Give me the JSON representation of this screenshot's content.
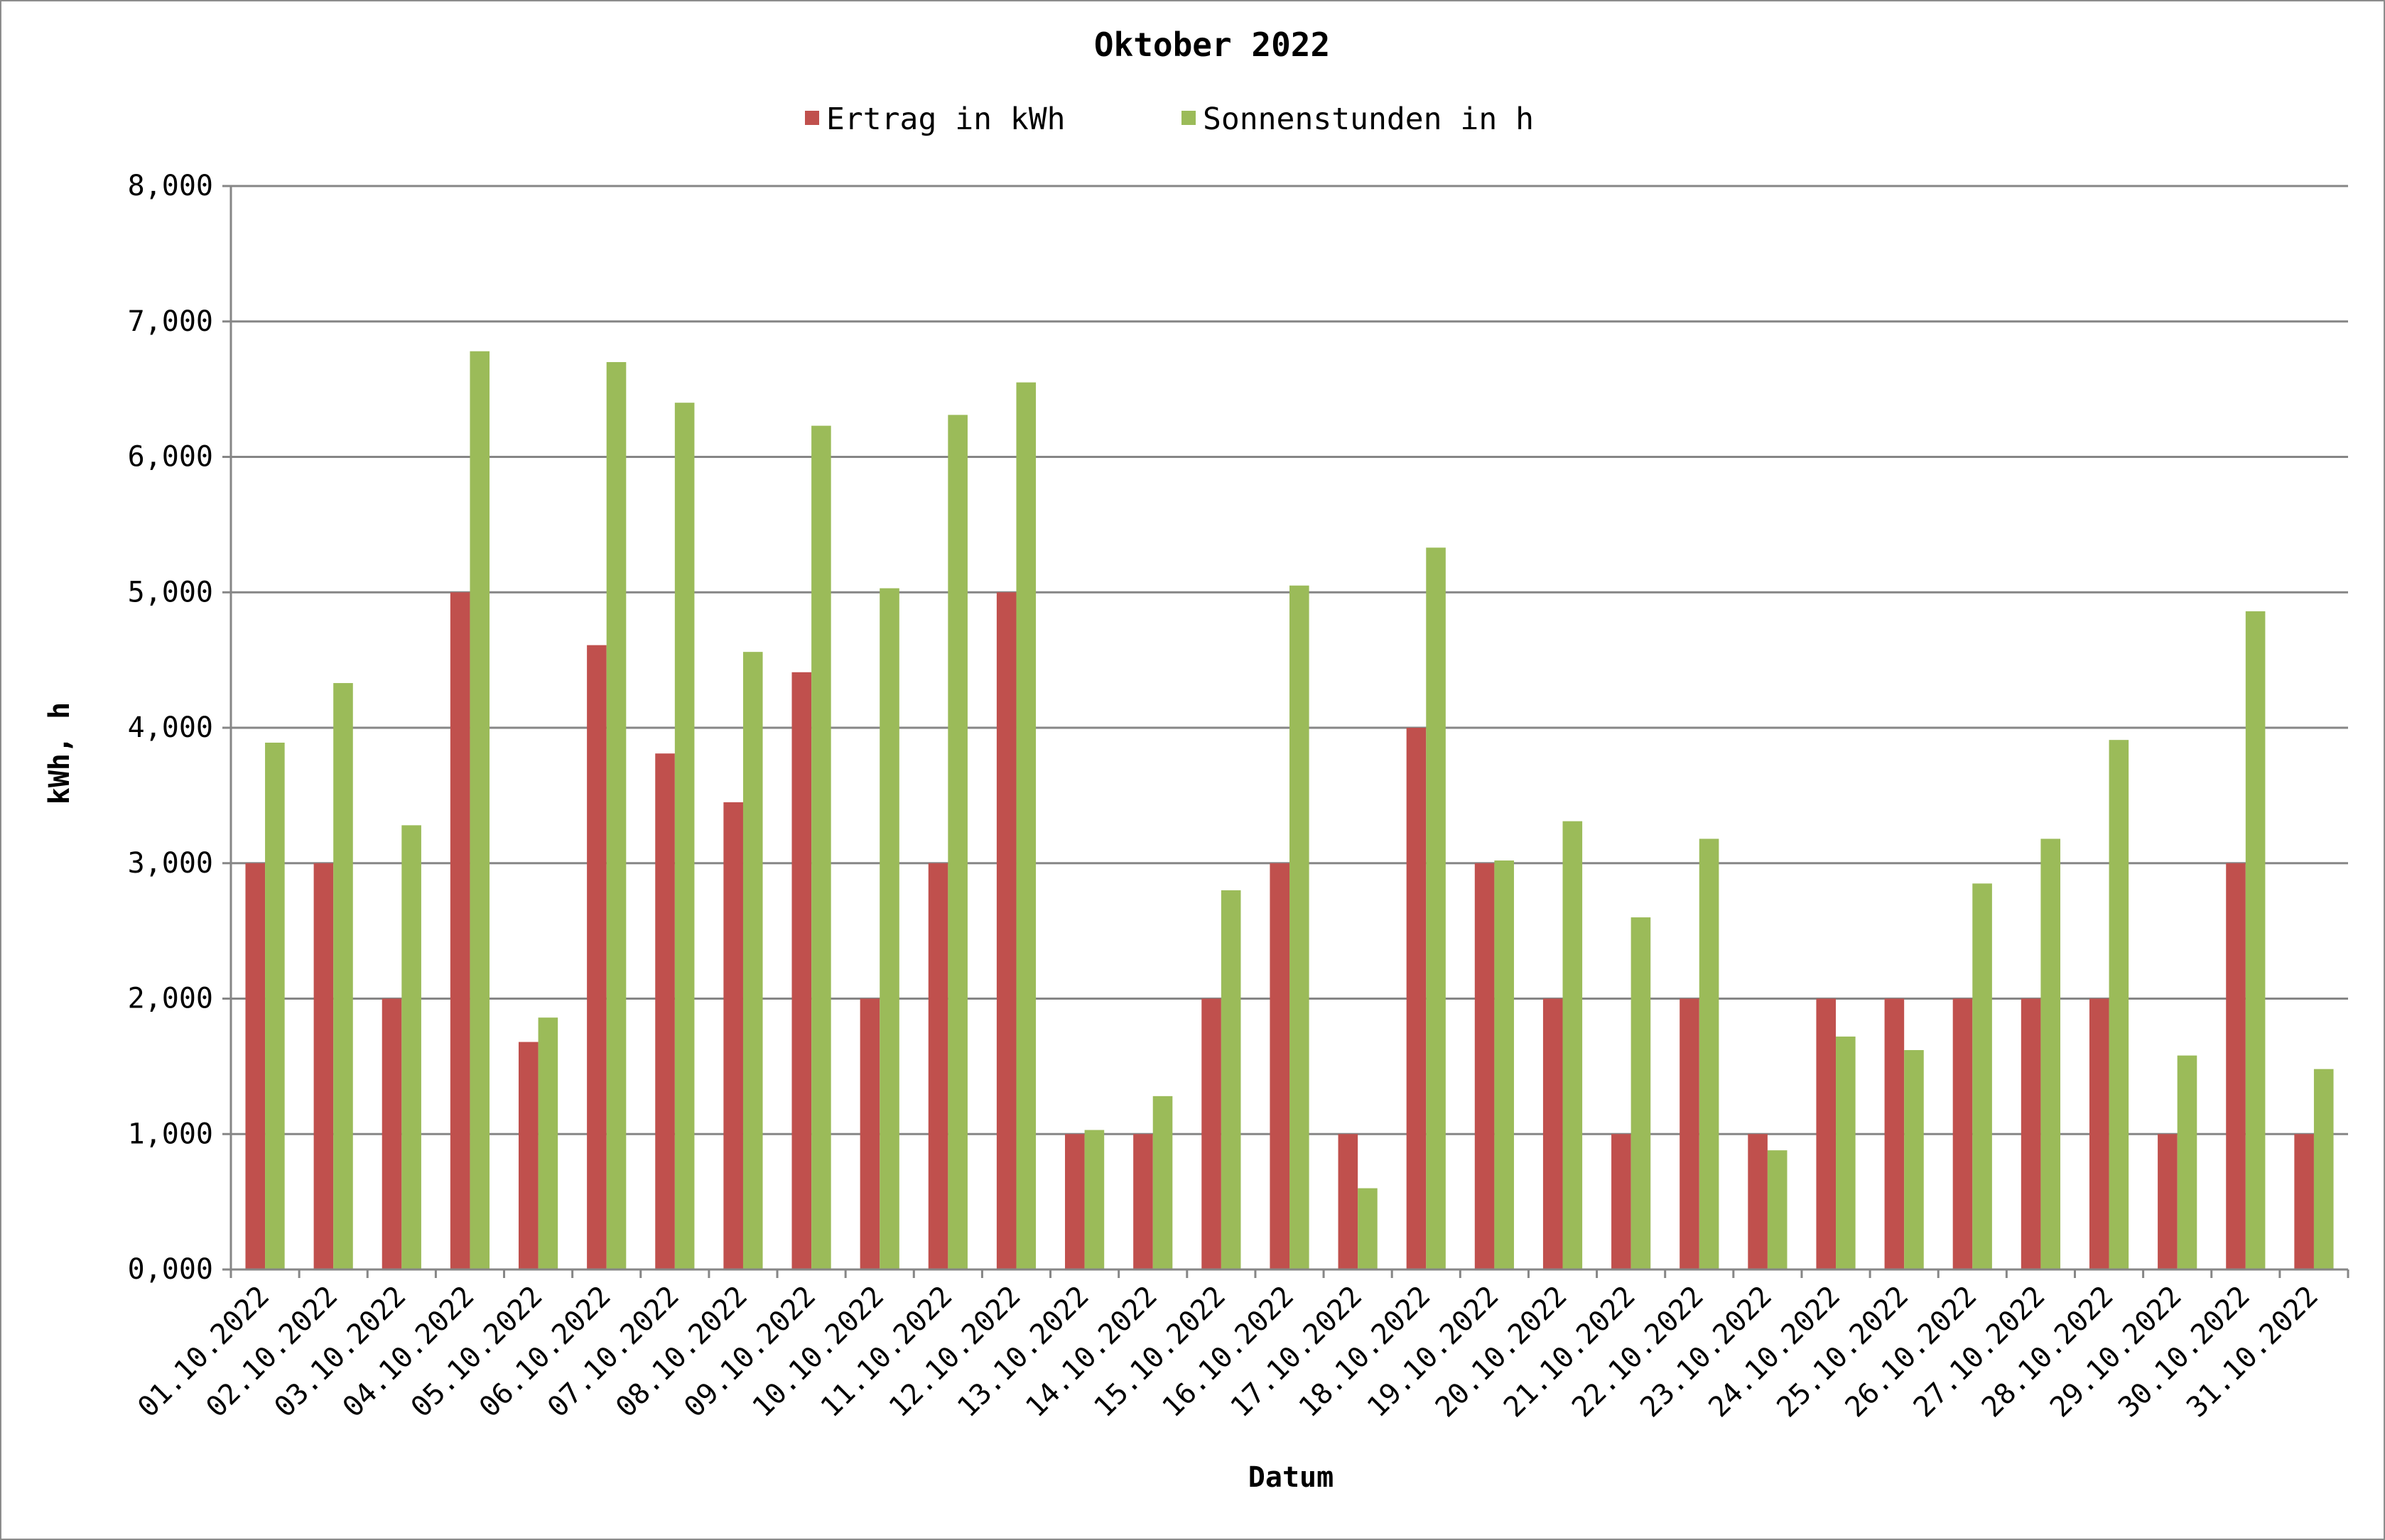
{
  "chart_data": {
    "type": "bar",
    "title": "Oktober 2022",
    "xlabel": "Datum",
    "ylabel": "kWh, h",
    "ylim": [
      0,
      8
    ],
    "ytick_step": 1,
    "ytick_labels": [
      "0,000",
      "1,000",
      "2,000",
      "3,000",
      "4,000",
      "5,000",
      "6,000",
      "7,000",
      "8,000"
    ],
    "grid": true,
    "legend_position": "top",
    "categories": [
      "01.10.2022",
      "02.10.2022",
      "03.10.2022",
      "04.10.2022",
      "05.10.2022",
      "06.10.2022",
      "07.10.2022",
      "08.10.2022",
      "09.10.2022",
      "10.10.2022",
      "11.10.2022",
      "12.10.2022",
      "13.10.2022",
      "14.10.2022",
      "15.10.2022",
      "16.10.2022",
      "17.10.2022",
      "18.10.2022",
      "19.10.2022",
      "20.10.2022",
      "21.10.2022",
      "22.10.2022",
      "23.10.2022",
      "24.10.2022",
      "25.10.2022",
      "26.10.2022",
      "27.10.2022",
      "28.10.2022",
      "29.10.2022",
      "30.10.2022",
      "31.10.2022"
    ],
    "series": [
      {
        "name": "Ertrag in kWh",
        "color": "#c0504d",
        "values": [
          3,
          3,
          2,
          5,
          1.68,
          4.61,
          3.81,
          3.45,
          4.41,
          2,
          3,
          5,
          1,
          1,
          2,
          3,
          1,
          4,
          3,
          2,
          1,
          2,
          1,
          2,
          2,
          2,
          2,
          2,
          1,
          3,
          1
        ]
      },
      {
        "name": "Sonnenstunden in h",
        "color": "#9bbb59",
        "values": [
          3.89,
          4.33,
          3.28,
          6.78,
          1.86,
          6.7,
          6.4,
          4.56,
          6.23,
          5.03,
          6.31,
          6.55,
          1.03,
          1.28,
          2.8,
          5.05,
          0.6,
          5.33,
          3.02,
          3.31,
          2.6,
          3.18,
          0.88,
          1.72,
          1.62,
          2.85,
          3.18,
          3.91,
          1.58,
          4.86,
          1.48
        ]
      }
    ]
  },
  "colors": {
    "grid": "#868686",
    "axis": "#868686"
  }
}
